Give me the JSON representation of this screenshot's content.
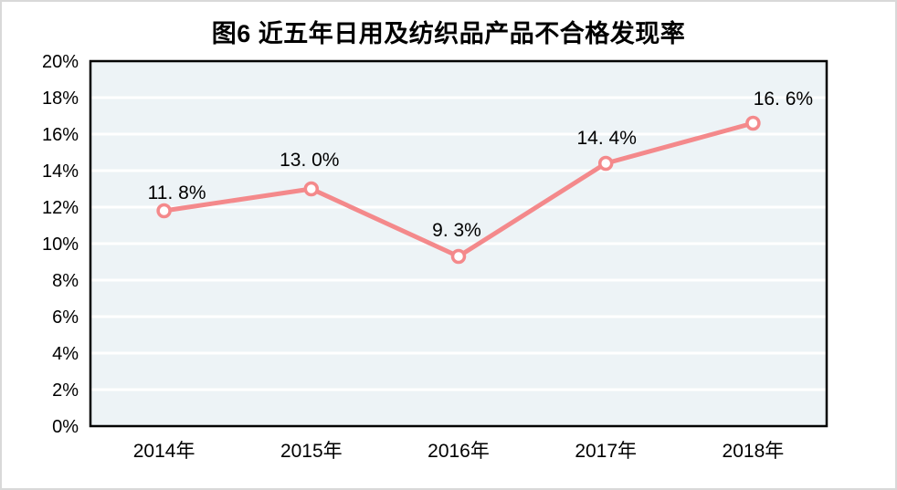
{
  "chart_data": {
    "type": "line",
    "title": "图6 近五年日用及纺织品产品不合格发现率",
    "categories": [
      "2014年",
      "2015年",
      "2016年",
      "2017年",
      "2018年"
    ],
    "values": [
      11.8,
      13.0,
      9.3,
      14.4,
      16.6
    ],
    "point_labels": [
      "11. 8%",
      "13. 0%",
      "9. 3%",
      "14. 4%",
      "16. 6%"
    ],
    "ylim": [
      0,
      20
    ],
    "ytick_step": 2,
    "yticks": [
      0,
      2,
      4,
      6,
      8,
      10,
      12,
      14,
      16,
      18,
      20
    ],
    "ytick_labels": [
      "0%",
      "2%",
      "4%",
      "6%",
      "8%",
      "10%",
      "12%",
      "14%",
      "16%",
      "18%",
      "20%"
    ],
    "xlabel": "",
    "ylabel": "",
    "legend": "none",
    "grid": "horizontal-white",
    "colors": {
      "line": "#f4898b",
      "marker_fill": "#ffffff",
      "marker_stroke": "#f4898b",
      "plot_background": "#edf3f6",
      "gridline": "#ffffff",
      "plot_border": "#000000",
      "text": "#000000",
      "canvas_border": "#d9d9d9",
      "canvas_background": "#ffffff"
    }
  }
}
